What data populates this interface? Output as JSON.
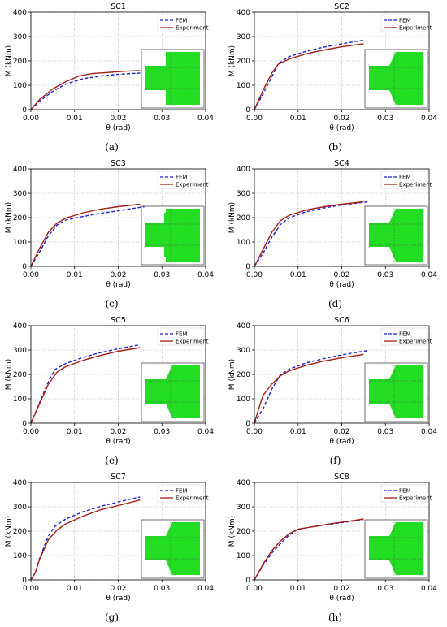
{
  "colors": {
    "fem": "#1f1fd0",
    "experiment": "#a51d16",
    "specimen_fill": "#22dd22",
    "grid": "#b0b0b0",
    "axis": "#000000"
  },
  "chart_data": [
    {
      "type": "line",
      "title": "SC1",
      "caption": "(a)",
      "xlabel": "θ (rad)",
      "ylabel": "M (kNm)",
      "xlim": [
        0,
        0.04
      ],
      "ylim": [
        0,
        400
      ],
      "xticks": [
        "0.00",
        "0.01",
        "0.02",
        "0.03",
        "0.04"
      ],
      "yticks": [
        "0",
        "100",
        "200",
        "300",
        "400"
      ],
      "grid": true,
      "legend": "top-right",
      "inset": "bc-simple",
      "series": [
        {
          "name": "FEM",
          "style": "dashed",
          "x": [
            0,
            0.002,
            0.005,
            0.008,
            0.012,
            0.016,
            0.02,
            0.025
          ],
          "y": [
            0,
            35,
            75,
            105,
            127,
            138,
            145,
            150
          ]
        },
        {
          "name": "Experiment",
          "style": "solid",
          "x": [
            0,
            0.002,
            0.005,
            0.008,
            0.011,
            0.014,
            0.018,
            0.022,
            0.025
          ],
          "y": [
            0,
            42,
            85,
            115,
            138,
            148,
            153,
            158,
            160
          ]
        }
      ]
    },
    {
      "type": "line",
      "title": "SC2",
      "caption": "(b)",
      "xlabel": "θ (rad)",
      "ylabel": "M (kNm)",
      "xlim": [
        0,
        0.04
      ],
      "ylim": [
        0,
        400
      ],
      "xticks": [
        "0.00",
        "0.01",
        "0.02",
        "0.03",
        "0.04"
      ],
      "yticks": [
        "0",
        "100",
        "200",
        "300",
        "400"
      ],
      "grid": true,
      "legend": "top-right",
      "inset": "tapered",
      "series": [
        {
          "name": "FEM",
          "style": "dashed",
          "x": [
            0,
            0.002,
            0.004,
            0.0055,
            0.008,
            0.012,
            0.016,
            0.02,
            0.025
          ],
          "y": [
            0,
            65,
            135,
            190,
            218,
            240,
            257,
            270,
            285
          ]
        },
        {
          "name": "Experiment",
          "style": "solid",
          "x": [
            0,
            0.002,
            0.004,
            0.0055,
            0.008,
            0.012,
            0.016,
            0.02,
            0.025
          ],
          "y": [
            0,
            80,
            150,
            187,
            208,
            230,
            245,
            258,
            270
          ]
        }
      ]
    },
    {
      "type": "line",
      "title": "SC3",
      "caption": "(c)",
      "xlabel": "θ (rad)",
      "ylabel": "M (kNm)",
      "xlim": [
        0,
        0.04
      ],
      "ylim": [
        0,
        400
      ],
      "xticks": [
        "0.00",
        "0.01",
        "0.02",
        "0.03",
        "0.04"
      ],
      "yticks": [
        "0",
        "100",
        "200",
        "300",
        "400"
      ],
      "grid": true,
      "legend": "top-right",
      "inset": "bc-notched",
      "series": [
        {
          "name": "FEM",
          "style": "dashed",
          "x": [
            0,
            0.002,
            0.004,
            0.006,
            0.008,
            0.012,
            0.016,
            0.02,
            0.026
          ],
          "y": [
            0,
            60,
            125,
            170,
            190,
            205,
            218,
            228,
            245
          ]
        },
        {
          "name": "Experiment",
          "style": "solid",
          "x": [
            0,
            0.002,
            0.004,
            0.006,
            0.008,
            0.012,
            0.016,
            0.02,
            0.025
          ],
          "y": [
            0,
            75,
            140,
            178,
            198,
            220,
            235,
            245,
            255
          ]
        }
      ]
    },
    {
      "type": "line",
      "title": "SC4",
      "caption": "(d)",
      "xlabel": "θ (rad)",
      "ylabel": "M (kNm)",
      "xlim": [
        0,
        0.04
      ],
      "ylim": [
        0,
        400
      ],
      "xticks": [
        "0.00",
        "0.01",
        "0.02",
        "0.03",
        "0.04"
      ],
      "yticks": [
        "0",
        "100",
        "200",
        "300",
        "400"
      ],
      "grid": true,
      "legend": "top-right",
      "inset": "tapered",
      "series": [
        {
          "name": "FEM",
          "style": "dashed",
          "x": [
            0,
            0.002,
            0.004,
            0.006,
            0.008,
            0.012,
            0.016,
            0.02,
            0.026
          ],
          "y": [
            0,
            55,
            120,
            172,
            200,
            225,
            240,
            252,
            265
          ]
        },
        {
          "name": "Experiment",
          "style": "solid",
          "x": [
            0,
            0.002,
            0.004,
            0.006,
            0.008,
            0.012,
            0.016,
            0.02,
            0.025
          ],
          "y": [
            0,
            70,
            140,
            188,
            210,
            232,
            245,
            255,
            265
          ]
        }
      ]
    },
    {
      "type": "line",
      "title": "SC5",
      "caption": "(e)",
      "xlabel": "θ (rad)",
      "ylabel": "M (kNm)",
      "xlim": [
        0,
        0.04
      ],
      "ylim": [
        0,
        400
      ],
      "xticks": [
        "0.00",
        "0.01",
        "0.02",
        "0.03",
        "0.04"
      ],
      "yticks": [
        "0",
        "100",
        "200",
        "300",
        "400"
      ],
      "grid": true,
      "legend": "top-right",
      "inset": "tapered",
      "series": [
        {
          "name": "FEM",
          "style": "dashed",
          "x": [
            0,
            0.002,
            0.004,
            0.0055,
            0.008,
            0.012,
            0.016,
            0.02,
            0.025
          ],
          "y": [
            0,
            85,
            170,
            220,
            245,
            270,
            290,
            305,
            322
          ]
        },
        {
          "name": "Experiment",
          "style": "solid",
          "x": [
            0,
            0.002,
            0.004,
            0.006,
            0.008,
            0.012,
            0.016,
            0.02,
            0.025
          ],
          "y": [
            0,
            80,
            160,
            210,
            232,
            258,
            278,
            295,
            310
          ]
        }
      ]
    },
    {
      "type": "line",
      "title": "SC6",
      "caption": "(f)",
      "xlabel": "θ (rad)",
      "ylabel": "M (kNm)",
      "xlim": [
        0,
        0.04
      ],
      "ylim": [
        0,
        400
      ],
      "xticks": [
        "0.00",
        "0.01",
        "0.02",
        "0.03",
        "0.04"
      ],
      "yticks": [
        "0",
        "100",
        "200",
        "300",
        "400"
      ],
      "grid": true,
      "legend": "top-right",
      "inset": "tapered",
      "series": [
        {
          "name": "FEM",
          "style": "dashed",
          "x": [
            0,
            0.002,
            0.004,
            0.006,
            0.008,
            0.012,
            0.016,
            0.02,
            0.026
          ],
          "y": [
            0,
            60,
            140,
            200,
            222,
            248,
            265,
            280,
            298
          ]
        },
        {
          "name": "Experiment",
          "style": "solid",
          "x": [
            0,
            0.001,
            0.002,
            0.004,
            0.006,
            0.008,
            0.012,
            0.016,
            0.02,
            0.025
          ],
          "y": [
            0,
            60,
            115,
            160,
            195,
            215,
            238,
            255,
            268,
            282
          ]
        }
      ]
    },
    {
      "type": "line",
      "title": "SC7",
      "caption": "(g)",
      "xlabel": "θ (rad)",
      "ylabel": "M (kNm)",
      "xlim": [
        0,
        0.04
      ],
      "ylim": [
        0,
        400
      ],
      "xticks": [
        "0.00",
        "0.01",
        "0.02",
        "0.03",
        "0.04"
      ],
      "yticks": [
        "0",
        "100",
        "200",
        "300",
        "400"
      ],
      "grid": true,
      "legend": "top-right",
      "inset": "tapered",
      "series": [
        {
          "name": "FEM",
          "style": "dashed",
          "x": [
            0,
            0.001,
            0.002,
            0.004,
            0.0055,
            0.008,
            0.012,
            0.016,
            0.02,
            0.025
          ],
          "y": [
            0,
            30,
            90,
            180,
            220,
            250,
            280,
            302,
            320,
            340
          ]
        },
        {
          "name": "Experiment",
          "style": "solid",
          "x": [
            0,
            0.001,
            0.002,
            0.004,
            0.006,
            0.008,
            0.012,
            0.016,
            0.02,
            0.025
          ],
          "y": [
            0,
            30,
            85,
            165,
            205,
            230,
            262,
            288,
            305,
            328
          ]
        }
      ]
    },
    {
      "type": "line",
      "title": "SC8",
      "caption": "(h)",
      "xlabel": "θ (rad)",
      "ylabel": "M (kNm)",
      "xlim": [
        0,
        0.04
      ],
      "ylim": [
        0,
        400
      ],
      "xticks": [
        "0.00",
        "0.01",
        "0.02",
        "0.03",
        "0.04"
      ],
      "yticks": [
        "0",
        "100",
        "200",
        "300",
        "400"
      ],
      "grid": true,
      "legend": "top-right",
      "inset": "tapered",
      "series": [
        {
          "name": "FEM",
          "style": "dashed",
          "x": [
            0,
            0.002,
            0.004,
            0.006,
            0.008,
            0.01,
            0.014,
            0.018,
            0.022,
            0.025
          ],
          "y": [
            0,
            60,
            110,
            150,
            185,
            208,
            220,
            230,
            240,
            248
          ]
        },
        {
          "name": "Experiment",
          "style": "solid",
          "x": [
            0,
            0.002,
            0.004,
            0.006,
            0.008,
            0.01,
            0.014,
            0.018,
            0.022,
            0.025
          ],
          "y": [
            0,
            65,
            120,
            160,
            190,
            208,
            220,
            232,
            242,
            250
          ]
        }
      ]
    }
  ]
}
